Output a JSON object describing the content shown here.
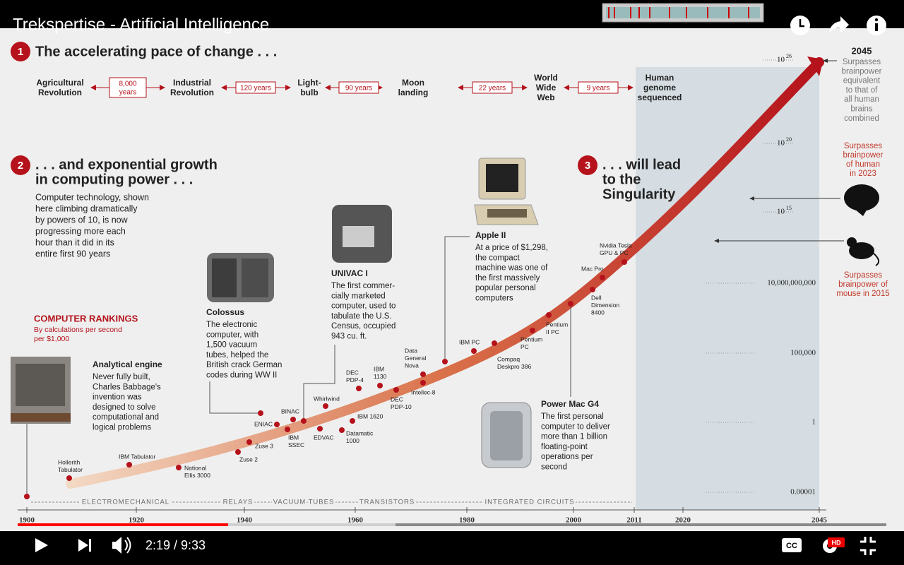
{
  "player": {
    "title": "Trekspertise - Artificial Intelligence",
    "time": "2:19 / 9:33",
    "hd": "HD",
    "cc": "CC"
  },
  "section1": {
    "number": "1",
    "heading": "The accelerating pace of change . . .",
    "milestones": [
      [
        "Agricultural",
        "Revolution"
      ],
      [
        "Industrial",
        "Revolution"
      ],
      [
        "Light-",
        "bulb"
      ],
      [
        "Moon",
        "landing"
      ],
      [
        "World",
        "Wide",
        "Web"
      ],
      [
        "Human",
        "genome",
        "sequenced"
      ]
    ],
    "intervals": [
      [
        "8,000",
        "years"
      ],
      [
        "120 years"
      ],
      [
        "90 years"
      ],
      [
        "22 years"
      ],
      [
        "9 years"
      ]
    ]
  },
  "section2": {
    "number": "2",
    "heading": [
      ". . . and exponential growth",
      "in computing power . . ."
    ],
    "body": [
      "Computer technology, shown",
      "here climbing dramatically",
      "by powers of 10, is now",
      "progressing more each",
      "hour than it did in its",
      "entire first 90 years"
    ]
  },
  "section3": {
    "number": "3",
    "heading": [
      ". . . will lead",
      "to the",
      "Singularity"
    ]
  },
  "rankings": {
    "title": "COMPUTER RANKINGS",
    "subtitle": [
      "By calculations per second",
      "per $1,000"
    ]
  },
  "callouts": [
    {
      "name": "Analytical engine",
      "body": [
        "Never fully built,",
        "Charles Babbage's",
        "invention was",
        "designed to solve",
        "computational and",
        "logical problems"
      ]
    },
    {
      "name": "Colossus",
      "body": [
        "The electronic",
        "computer, with",
        "1,500 vacuum",
        "tubes, helped the",
        "British crack German",
        "codes during WW II"
      ]
    },
    {
      "name": "UNIVAC I",
      "body": [
        "The first commer-",
        "cially marketed",
        "computer, used to",
        "tabulate the U.S.",
        "Census, occupied",
        "943 cu. ft."
      ]
    },
    {
      "name": "Apple II",
      "body": [
        "At a price of $1,298,",
        "the compact",
        "machine was one of",
        "the first massively",
        "popular personal",
        "computers"
      ]
    },
    {
      "name": "Power Mac G4",
      "body": [
        "The first personal",
        "computer to deliver",
        "more than 1 billion",
        "floating-point",
        "operations per",
        "second"
      ]
    }
  ],
  "curve_labels": [
    [
      "Hollerith",
      "Tabulator"
    ],
    [
      "IBM Tabulator"
    ],
    [
      "National",
      "Ellis 3000"
    ],
    [
      "Zuse 2"
    ],
    [
      "Zuse 3"
    ],
    [
      "ENIAC"
    ],
    [
      "BINAC"
    ],
    [
      "IBM",
      "SSEC"
    ],
    [
      "Whirlwind"
    ],
    [
      "EDVAC"
    ],
    [
      "DEC",
      "PDP-4"
    ],
    [
      "IBM",
      "1130"
    ],
    [
      "IBM 1620"
    ],
    [
      "Datamatic",
      "1000"
    ],
    [
      "DEC",
      "PDP-10"
    ],
    [
      "Data",
      "General",
      "Nova"
    ],
    [
      "Intellec-8"
    ],
    [
      "IBM PC"
    ],
    [
      "Compaq",
      "Deskpro 386"
    ],
    [
      "Pentium",
      "PC"
    ],
    [
      "Pentium",
      "II PC"
    ],
    [
      "Dell",
      "Dimension",
      "8400"
    ],
    [
      "Mac Pro"
    ],
    [
      "Nvidia Tesla",
      "GPU & PC"
    ]
  ],
  "y_axis": [
    {
      "base": "10",
      "exp": "26"
    },
    {
      "base": "10",
      "exp": "20"
    },
    {
      "base": "10",
      "exp": "15"
    },
    "10,000,000,000",
    "100,000",
    "1",
    "0.00001"
  ],
  "x_axis": [
    "1900",
    "1920",
    "1940",
    "1960",
    "1980",
    "2000",
    "2011",
    "2020",
    "2045"
  ],
  "eras": [
    "ELECTROMECHANICAL",
    "RELAYS",
    "VACUUM TUBES",
    "TRANSISTORS",
    "INTEGRATED CIRCUITS"
  ],
  "forecasts": [
    {
      "year": "2045",
      "text": [
        "Surpasses",
        "brainpower",
        "equivalent",
        "to that of",
        "all human",
        "brains",
        "combined"
      ]
    },
    {
      "text": [
        "Surpasses",
        "brainpower",
        "of human",
        "in 2023"
      ]
    },
    {
      "text": [
        "Surpasses",
        "brainpower of",
        "mouse in 2015"
      ]
    }
  ]
}
